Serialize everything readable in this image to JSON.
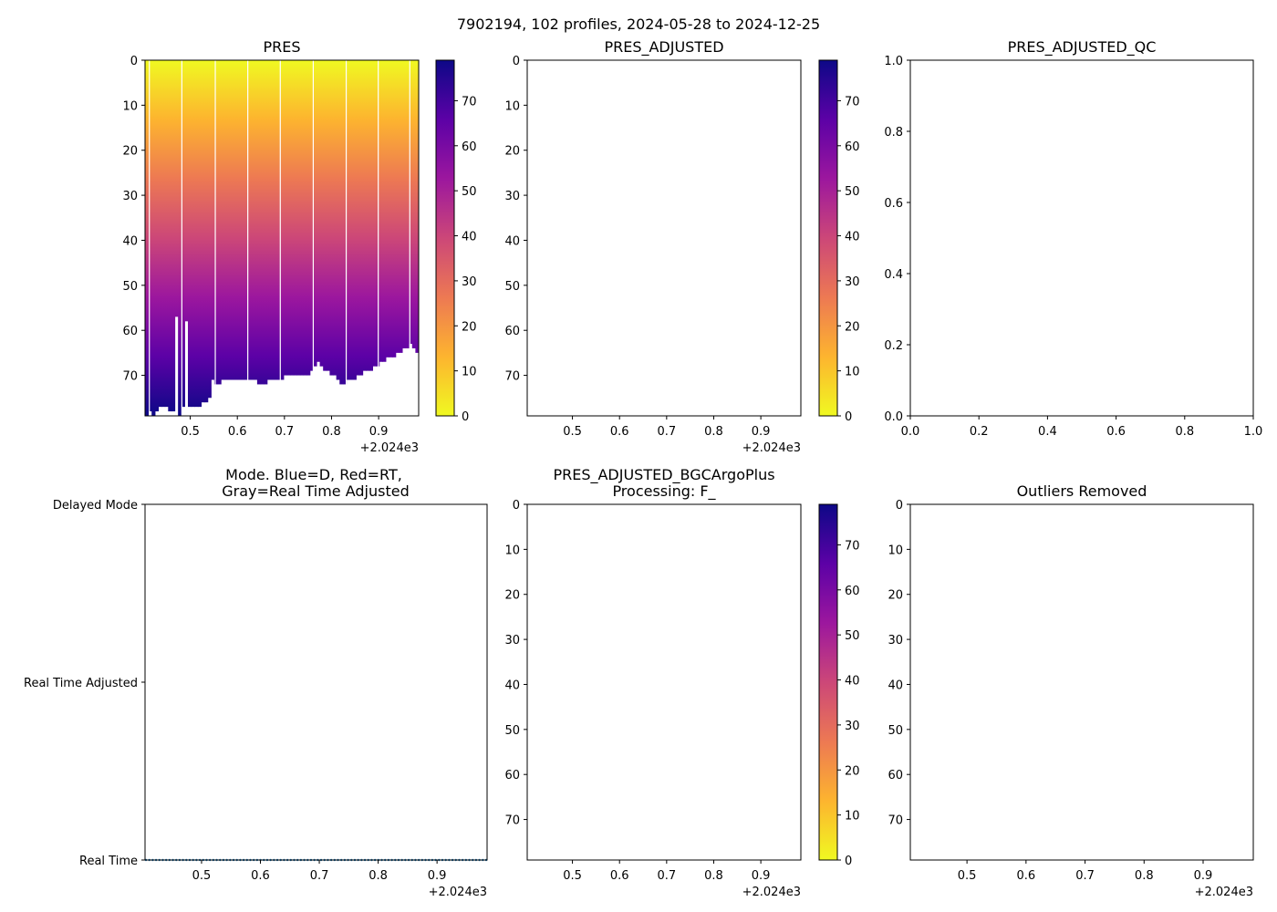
{
  "suptitle": "7902194, 102 profiles, 2024-05-28 to 2024-12-25",
  "colorscale": {
    "name": "plasma_r",
    "colors": [
      "#f0f921",
      "#fdb42f",
      "#ed7953",
      "#cc4778",
      "#9c179e",
      "#5c01a6",
      "#0d0887"
    ]
  },
  "chart_data": [
    {
      "id": "pres",
      "type": "heatmap",
      "title": "PRES",
      "xlim": [
        0.404,
        0.985
      ],
      "ylim": [
        79,
        0
      ],
      "xticks": [
        0.5,
        0.6,
        0.7,
        0.8,
        0.9
      ],
      "yticks": [
        0,
        10,
        20,
        30,
        40,
        50,
        60,
        70
      ],
      "offset_label": "+2.024e3",
      "colorbar": {
        "range": [
          0,
          79
        ],
        "ticks": [
          0,
          10,
          20,
          30,
          40,
          50,
          60,
          70
        ]
      },
      "profile_times": [
        0.404,
        0.411,
        0.418,
        0.425,
        0.432,
        0.439,
        0.446,
        0.453,
        0.46,
        0.467,
        0.474,
        0.481,
        0.488,
        0.495,
        0.502,
        0.509,
        0.516,
        0.523,
        0.53,
        0.537,
        0.544,
        0.551,
        0.558,
        0.565,
        0.572,
        0.579,
        0.586,
        0.593,
        0.6,
        0.607,
        0.614,
        0.621,
        0.628,
        0.635,
        0.642,
        0.649,
        0.656,
        0.663,
        0.67,
        0.677,
        0.684,
        0.691,
        0.698,
        0.705,
        0.712,
        0.719,
        0.726,
        0.733,
        0.74,
        0.747,
        0.754,
        0.761,
        0.768,
        0.775,
        0.782,
        0.789,
        0.796,
        0.803,
        0.81,
        0.817,
        0.824,
        0.831,
        0.838,
        0.845,
        0.852,
        0.859,
        0.866,
        0.873,
        0.88,
        0.887,
        0.894,
        0.901,
        0.908,
        0.915,
        0.922,
        0.929,
        0.936,
        0.943,
        0.95,
        0.957,
        0.964,
        0.971,
        0.978
      ],
      "max_depth": [
        79,
        78,
        79,
        78,
        77,
        77,
        77,
        78,
        78,
        57,
        79,
        77,
        58,
        77,
        77,
        77,
        77,
        76,
        76,
        75,
        71,
        72,
        72,
        71,
        71,
        71,
        71,
        71,
        71,
        71,
        71,
        71,
        71,
        71,
        72,
        72,
        72,
        71,
        71,
        71,
        71,
        71,
        70,
        70,
        70,
        70,
        70,
        70,
        70,
        70,
        69,
        68,
        67,
        68,
        69,
        69,
        70,
        70,
        71,
        72,
        72,
        71,
        71,
        71,
        70,
        70,
        69,
        69,
        69,
        68,
        68,
        67,
        67,
        66,
        66,
        66,
        65,
        65,
        64,
        64,
        63,
        64,
        65
      ],
      "gaps": [
        0.412,
        0.481,
        0.552,
        0.621,
        0.69,
        0.76,
        0.83,
        0.898,
        0.965
      ]
    },
    {
      "id": "pres-adjusted",
      "type": "heatmap",
      "title": "PRES_ADJUSTED",
      "xlim": [
        0.404,
        0.985
      ],
      "ylim": [
        79,
        0
      ],
      "xticks": [
        0.5,
        0.6,
        0.7,
        0.8,
        0.9
      ],
      "yticks": [
        0,
        10,
        20,
        30,
        40,
        50,
        60,
        70
      ],
      "offset_label": "+2.024e3",
      "colorbar": {
        "range": [
          0,
          79
        ],
        "ticks": [
          0,
          10,
          20,
          30,
          40,
          50,
          60,
          70
        ]
      }
    },
    {
      "id": "pres-adjusted-qc",
      "type": "scatter",
      "title": "PRES_ADJUSTED_QC",
      "xlim": [
        0,
        1
      ],
      "ylim": [
        0,
        1
      ],
      "xticks": [
        0.0,
        0.2,
        0.4,
        0.6,
        0.8,
        1.0
      ],
      "yticks": [
        0.0,
        0.2,
        0.4,
        0.6,
        0.8,
        1.0
      ]
    },
    {
      "id": "mode",
      "type": "scatter",
      "title": "Mode. Blue=D, Red=RT,",
      "title2": "Gray=Real Time Adjusted",
      "xlim": [
        0.404,
        0.985
      ],
      "ylim": [
        0,
        2
      ],
      "xticks": [
        0.5,
        0.6,
        0.7,
        0.8,
        0.9
      ],
      "offset_label": "+2.024e3",
      "ytick_labels": [
        {
          "value": 2,
          "label": "Delayed Mode"
        },
        {
          "value": 1,
          "label": "Real Time Adjusted"
        },
        {
          "value": 0,
          "label": "Real Time"
        }
      ],
      "points_y": 0,
      "point_count": 102,
      "point_color": "#1f77b4"
    },
    {
      "id": "bgcargo",
      "type": "heatmap",
      "title": "PRES_ADJUSTED_BGCArgoPlus",
      "title2": "Processing: F_",
      "xlim": [
        0.404,
        0.985
      ],
      "ylim": [
        79,
        0
      ],
      "xticks": [
        0.5,
        0.6,
        0.7,
        0.8,
        0.9
      ],
      "yticks": [
        0,
        10,
        20,
        30,
        40,
        50,
        60,
        70
      ],
      "offset_label": "+2.024e3",
      "colorbar": {
        "range": [
          0,
          79
        ],
        "ticks": [
          0,
          10,
          20,
          30,
          40,
          50,
          60,
          70
        ]
      }
    },
    {
      "id": "outliers",
      "type": "heatmap",
      "title": "Outliers Removed",
      "xlim": [
        0.404,
        0.985
      ],
      "ylim": [
        79,
        0
      ],
      "xticks": [
        0.5,
        0.6,
        0.7,
        0.8,
        0.9
      ],
      "yticks": [
        0,
        10,
        20,
        30,
        40,
        50,
        60,
        70
      ],
      "offset_label": "+2.024e3"
    }
  ]
}
